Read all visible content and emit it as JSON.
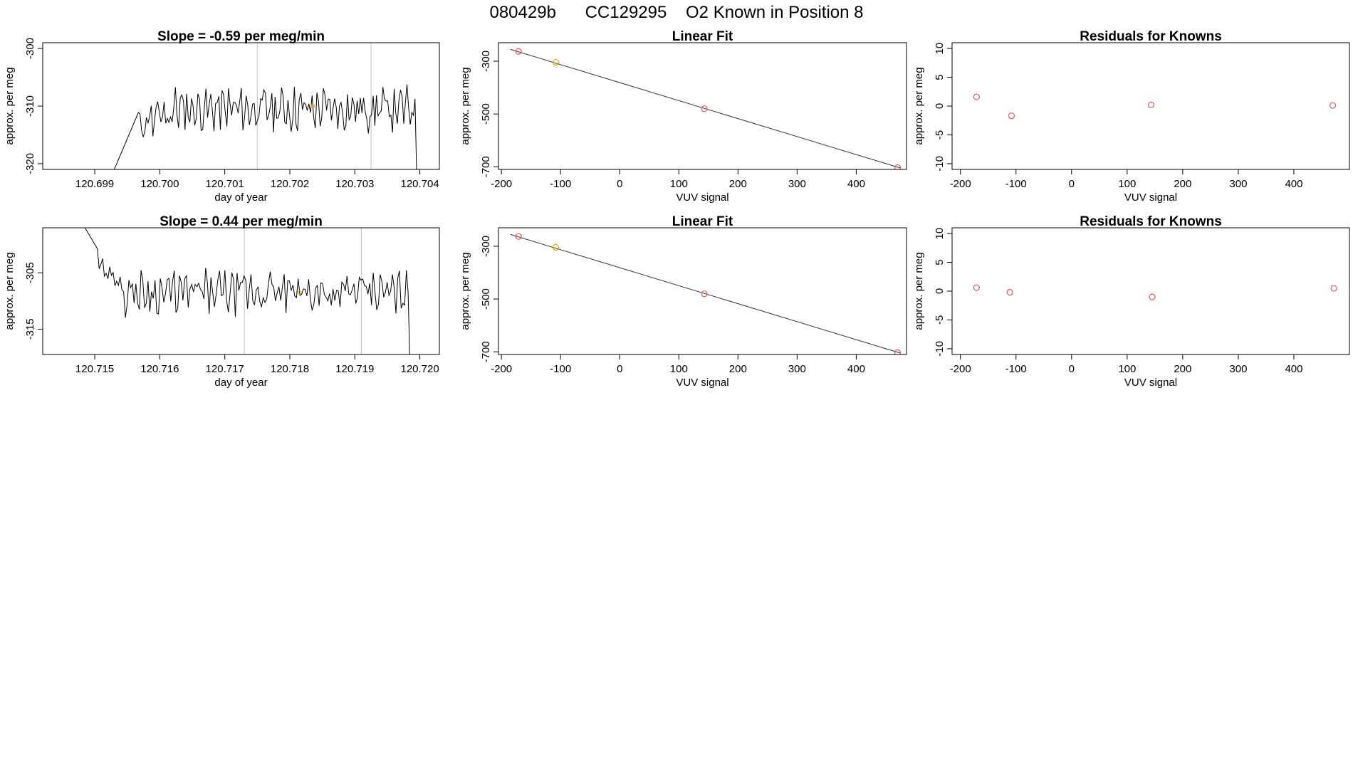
{
  "figure": {
    "title_parts": [
      "080429b",
      "CC129295",
      "O2 Known in Position  8"
    ]
  },
  "chart_data": [
    {
      "id": "time-1",
      "type": "line",
      "title": "Slope =  -0.59  per meg/min",
      "xlabel": "day of year",
      "ylabel": "approx. per meg",
      "xlim": [
        120.6982,
        120.7043
      ],
      "ylim": [
        -321,
        -299
      ],
      "xticks": [
        120.699,
        120.7,
        120.701,
        120.702,
        120.703,
        120.704
      ],
      "xtick_labels": [
        "120.699",
        "120.700",
        "120.701",
        "120.702",
        "120.703",
        "120.704"
      ],
      "yticks": [
        -300,
        -310,
        -320
      ],
      "vlines": [
        120.7015,
        120.70325
      ],
      "line_color": "#000000",
      "marker": {
        "x": 120.70235,
        "y": -310,
        "color": "#e69f00"
      },
      "series": [
        {
          "name": "signal",
          "x_start": 120.6993,
          "x_end": 120.704,
          "y_level": -310.5,
          "seed": 11
        }
      ]
    },
    {
      "id": "fit-1",
      "type": "scatter",
      "title": "Linear Fit",
      "xlabel": "VUV signal",
      "ylabel": "approx. per meg",
      "xlim": [
        -205,
        485
      ],
      "ylim": [
        -710,
        -230
      ],
      "xticks": [
        -200,
        -100,
        0,
        100,
        200,
        300,
        400
      ],
      "xtick_labels": [
        "-200",
        "-100",
        "0",
        "100",
        "200",
        "300",
        "400"
      ],
      "yticks": [
        -300,
        -500,
        -700
      ],
      "fit_line": {
        "x": [
          -185,
          475
        ],
        "y": [
          -255,
          -705
        ]
      },
      "points": [
        {
          "x": -171,
          "y": -263,
          "color": "#e05a5a"
        },
        {
          "x": -108,
          "y": -304,
          "color": "#e69f00"
        },
        {
          "x": 143,
          "y": -480,
          "color": "#e05a5a"
        },
        {
          "x": 470,
          "y": -703,
          "color": "#e05a5a"
        }
      ]
    },
    {
      "id": "resid-1",
      "type": "scatter",
      "title": "Residuals for Knowns",
      "xlabel": "VUV signal",
      "ylabel": "approx. per meg",
      "xlim": [
        -215,
        500
      ],
      "ylim": [
        -11,
        11
      ],
      "xticks": [
        -200,
        -100,
        0,
        100,
        200,
        300,
        400
      ],
      "xtick_labels": [
        "-200",
        "-100",
        "0",
        "100",
        "200",
        "300",
        "400"
      ],
      "yticks": [
        10,
        5,
        0,
        -5,
        -10
      ],
      "points": [
        {
          "x": -171,
          "y": 1.6,
          "color": "#e05a5a"
        },
        {
          "x": -108,
          "y": -1.7,
          "color": "#e05a5a"
        },
        {
          "x": 143,
          "y": 0.2,
          "color": "#e05a5a"
        },
        {
          "x": 470,
          "y": 0.1,
          "color": "#e05a5a"
        }
      ]
    },
    {
      "id": "time-2",
      "type": "line",
      "title": "Slope =  0.44  per meg/min",
      "xlabel": "day of year",
      "ylabel": "approx. per meg",
      "xlim": [
        120.7142,
        120.7203
      ],
      "ylim": [
        -319.5,
        -297
      ],
      "xticks": [
        120.715,
        120.716,
        120.717,
        120.718,
        120.719,
        120.72
      ],
      "xtick_labels": [
        "120.715",
        "120.716",
        "120.717",
        "120.718",
        "120.719",
        "120.720"
      ],
      "yticks": [
        -305,
        -315
      ],
      "vlines": [
        120.7173,
        120.7191
      ],
      "line_color": "#000000",
      "marker": {
        "x": 120.71815,
        "y": -308.5,
        "color": "#e69f00"
      },
      "series": [
        {
          "name": "signal",
          "x_start": 120.7148,
          "x_end": 120.7199,
          "y_level": -308.5,
          "seed": 29
        }
      ]
    },
    {
      "id": "fit-2",
      "type": "scatter",
      "title": "Linear Fit",
      "xlabel": "VUV signal",
      "ylabel": "approx. per meg",
      "xlim": [
        -205,
        485
      ],
      "ylim": [
        -710,
        -230
      ],
      "xticks": [
        -200,
        -100,
        0,
        100,
        200,
        300,
        400
      ],
      "xtick_labels": [
        "-200",
        "-100",
        "0",
        "100",
        "200",
        "300",
        "400"
      ],
      "yticks": [
        -300,
        -500,
        -700
      ],
      "fit_line": {
        "x": [
          -185,
          475
        ],
        "y": [
          -255,
          -705
        ]
      },
      "points": [
        {
          "x": -171,
          "y": -263,
          "color": "#e05a5a"
        },
        {
          "x": -108,
          "y": -304,
          "color": "#e69f00"
        },
        {
          "x": 143,
          "y": -480,
          "color": "#e05a5a"
        },
        {
          "x": 470,
          "y": -703,
          "color": "#e05a5a"
        }
      ]
    },
    {
      "id": "resid-2",
      "type": "scatter",
      "title": "Residuals for Knowns",
      "xlabel": "VUV signal",
      "ylabel": "approx. per meg",
      "xlim": [
        -215,
        500
      ],
      "ylim": [
        -11,
        11
      ],
      "xticks": [
        -200,
        -100,
        0,
        100,
        200,
        300,
        400
      ],
      "xtick_labels": [
        "-200",
        "-100",
        "0",
        "100",
        "200",
        "300",
        "400"
      ],
      "yticks": [
        10,
        5,
        0,
        -5,
        -10
      ],
      "points": [
        {
          "x": -171,
          "y": 0.6,
          "color": "#e05a5a"
        },
        {
          "x": -111,
          "y": -0.2,
          "color": "#e05a5a"
        },
        {
          "x": 145,
          "y": -1.0,
          "color": "#e05a5a"
        },
        {
          "x": 472,
          "y": 0.5,
          "color": "#e05a5a"
        }
      ]
    }
  ]
}
